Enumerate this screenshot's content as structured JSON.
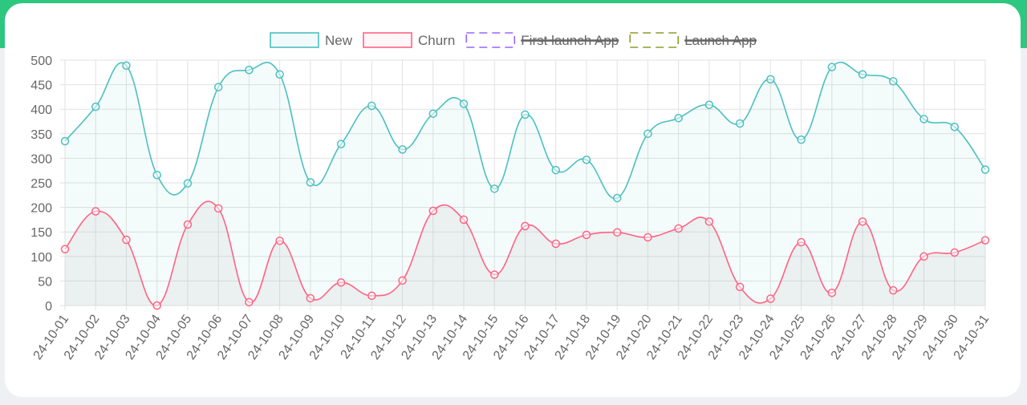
{
  "colors": {
    "top_band": "#2ec77f",
    "new": "#4bc0c0",
    "new_fill": "rgba(75,192,192,0.06)",
    "churn": "#ff6384",
    "churn_fill": "rgba(200,200,200,0.2)",
    "first_launch": "#9966ff",
    "launch": "#8f9b2a"
  },
  "chart_data": {
    "type": "line",
    "legend_position": "top",
    "legend": [
      {
        "label": "New",
        "color": "#4bc0c0",
        "hidden": false,
        "dashed": false
      },
      {
        "label": "Churn",
        "color": "#ff6384",
        "hidden": false,
        "dashed": false
      },
      {
        "label": "First launch App",
        "color": "#9966ff",
        "hidden": true,
        "dashed": true
      },
      {
        "label": "Launch App",
        "color": "#8f9b2a",
        "hidden": true,
        "dashed": true
      }
    ],
    "categories": [
      "24-10-01",
      "24-10-02",
      "24-10-03",
      "24-10-04",
      "24-10-05",
      "24-10-06",
      "24-10-07",
      "24-10-08",
      "24-10-09",
      "24-10-10",
      "24-10-11",
      "24-10-12",
      "24-10-13",
      "24-10-14",
      "24-10-15",
      "24-10-16",
      "24-10-17",
      "24-10-18",
      "24-10-19",
      "24-10-20",
      "24-10-21",
      "24-10-22",
      "24-10-23",
      "24-10-24",
      "24-10-25",
      "24-10-26",
      "24-10-27",
      "24-10-28",
      "24-10-29",
      "24-10-30",
      "24-10-31"
    ],
    "series": [
      {
        "name": "New",
        "values": [
          335,
          405,
          489,
          266,
          249,
          445,
          480,
          471,
          251,
          329,
          407,
          318,
          391,
          411,
          238,
          389,
          276,
          297,
          219,
          350,
          382,
          409,
          371,
          461,
          338,
          486,
          471,
          457,
          380,
          364,
          277
        ]
      },
      {
        "name": "Churn",
        "values": [
          115,
          192,
          134,
          0,
          165,
          198,
          7,
          132,
          15,
          47,
          20,
          51,
          193,
          175,
          63,
          162,
          126,
          144,
          149,
          139,
          157,
          171,
          38,
          14,
          129,
          26,
          171,
          31,
          100,
          108,
          133
        ]
      }
    ],
    "ylim": [
      0,
      500
    ],
    "yticks": [
      0,
      50,
      100,
      150,
      200,
      250,
      300,
      350,
      400,
      450,
      500
    ],
    "grid": true
  }
}
